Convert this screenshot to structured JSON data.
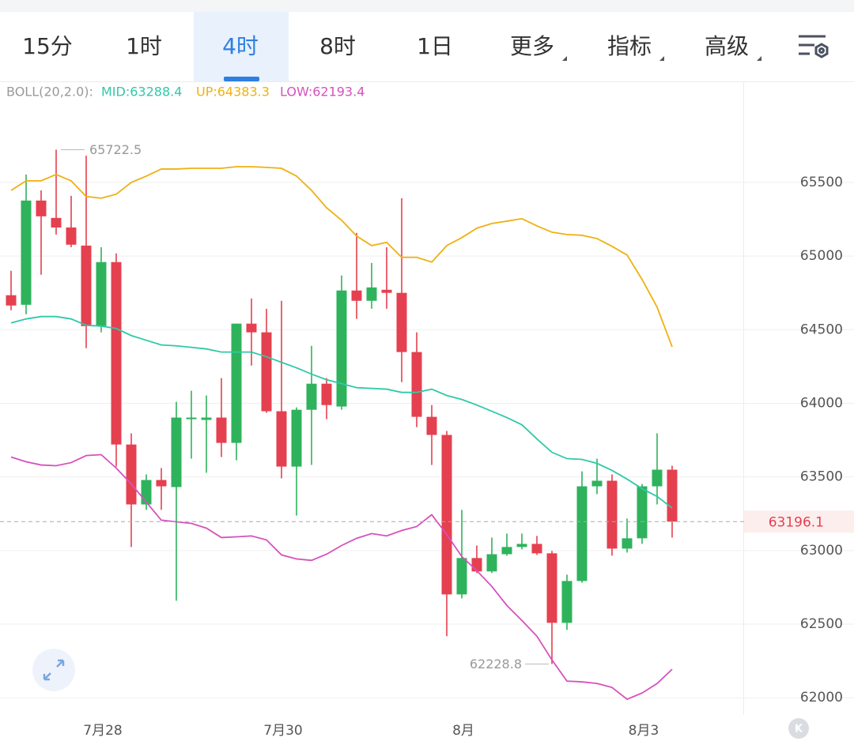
{
  "toolbar": {
    "tabs": [
      "15分",
      "1时",
      "4时",
      "8时",
      "1日",
      "更多",
      "指标",
      "高级"
    ],
    "active": 2,
    "dropdown_tabs": [
      5,
      6,
      7
    ]
  },
  "chart_data": {
    "type": "candlestick",
    "indicator_label": "BOLL(20,2.0):",
    "categories": [
      null,
      null,
      null,
      null,
      null,
      null,
      "7月28",
      null,
      null,
      null,
      null,
      null,
      null,
      null,
      null,
      null,
      null,
      null,
      "7月30",
      null,
      null,
      null,
      null,
      null,
      null,
      null,
      null,
      null,
      null,
      null,
      "8月",
      null,
      null,
      null,
      null,
      null,
      null,
      null,
      null,
      null,
      null,
      null,
      "8月3",
      null,
      null
    ],
    "open": [
      64734,
      64669,
      65377,
      65259,
      65194,
      65071,
      64524,
      64959,
      63720,
      63313,
      63479,
      63431,
      63892,
      63887,
      63903,
      63731,
      64541,
      64482,
      63946,
      63570,
      63956,
      64133,
      63978,
      64766,
      64696,
      64771,
      64750,
      64348,
      63908,
      63785,
      62702,
      62949,
      62858,
      62975,
      63024,
      63045,
      62981,
      62509,
      62793,
      63436,
      63474,
      63013,
      63083,
      63436,
      63549
    ],
    "high": [
      64900,
      65554,
      65446,
      65722.5,
      65409,
      65682,
      65060,
      65018,
      63796,
      63517,
      63560,
      64010,
      64085,
      64053,
      64171,
      64541,
      64712,
      64642,
      64696,
      63972,
      64390,
      64171,
      64868,
      65157,
      64953,
      65060,
      65393,
      64482,
      63988,
      63812,
      63276,
      63034,
      63088,
      63115,
      63115,
      63099,
      62997,
      62836,
      63538,
      63624,
      63517,
      63217,
      63452,
      63796,
      63576
    ],
    "low": [
      64632,
      64605,
      64873,
      65146,
      65060,
      64374,
      64482,
      63570,
      63024,
      63276,
      63276,
      62659,
      63624,
      63528,
      63635,
      63613,
      64256,
      63935,
      63490,
      63238,
      63581,
      63892,
      63956,
      64573,
      64642,
      64642,
      64144,
      63838,
      63581,
      62418,
      62675,
      62847,
      62847,
      62965,
      63008,
      62970,
      62228.8,
      62461,
      62782,
      63383,
      62965,
      62986,
      63045,
      63313,
      63088
    ],
    "close": [
      64664,
      65377,
      65270,
      65194,
      65077,
      64524,
      64959,
      63720,
      63313,
      63479,
      63436,
      63903,
      63903,
      63903,
      63731,
      64541,
      64482,
      63946,
      63570,
      63956,
      64133,
      63988,
      64766,
      64696,
      64787,
      64750,
      64348,
      63908,
      63785,
      62702,
      62949,
      62858,
      62975,
      63024,
      63045,
      62981,
      62509,
      62793,
      63436,
      63474,
      63013,
      63083,
      63436,
      63549,
      63196.1
    ],
    "up_color": "#2eb35c",
    "down_color": "#e5404f",
    "series": [
      {
        "name": "MID:63288.4",
        "color": "#2fc9a8",
        "values": [
          64546,
          64573,
          64589,
          64589,
          64573,
          64530,
          64524,
          64508,
          64460,
          64428,
          64396,
          64390,
          64380,
          64369,
          64348,
          64348,
          64348,
          64316,
          64278,
          64241,
          64198,
          64160,
          64133,
          64106,
          64101,
          64096,
          64074,
          64074,
          64096,
          64053,
          64026,
          63988,
          63946,
          63903,
          63854,
          63758,
          63667,
          63624,
          63619,
          63592,
          63544,
          63485,
          63420,
          63367,
          63288.4
        ]
      },
      {
        "name": "UP:64383.3",
        "color": "#efb112",
        "values": [
          65446,
          65511,
          65511,
          65554,
          65511,
          65404,
          65393,
          65420,
          65500,
          65543,
          65591,
          65591,
          65596,
          65596,
          65596,
          65607,
          65607,
          65602,
          65596,
          65543,
          65446,
          65328,
          65243,
          65136,
          65071,
          65093,
          64991,
          64991,
          64959,
          65071,
          65125,
          65189,
          65221,
          65237,
          65254,
          65205,
          65162,
          65146,
          65141,
          65119,
          65066,
          65007,
          64841,
          64653,
          64383.3
        ]
      },
      {
        "name": "LOW:62193.4",
        "color": "#d651bd",
        "values": [
          63635,
          63603,
          63581,
          63576,
          63597,
          63645,
          63651,
          63560,
          63452,
          63329,
          63206,
          63195,
          63184,
          63152,
          63088,
          63093,
          63099,
          63072,
          62970,
          62943,
          62933,
          62975,
          63034,
          63083,
          63115,
          63099,
          63136,
          63163,
          63243,
          63109,
          62959,
          62863,
          62756,
          62627,
          62525,
          62418,
          62257,
          62113,
          62108,
          62097,
          62070,
          61990,
          62032,
          62097,
          62193.4
        ]
      }
    ],
    "max_label": "65722.5",
    "min_label": "62228.8",
    "last_label": "63196.1",
    "ylim": [
      61883,
      66181
    ],
    "yticks": [
      62000,
      62500,
      63000,
      63500,
      64000,
      64500,
      65000,
      65500
    ],
    "grid": true
  }
}
